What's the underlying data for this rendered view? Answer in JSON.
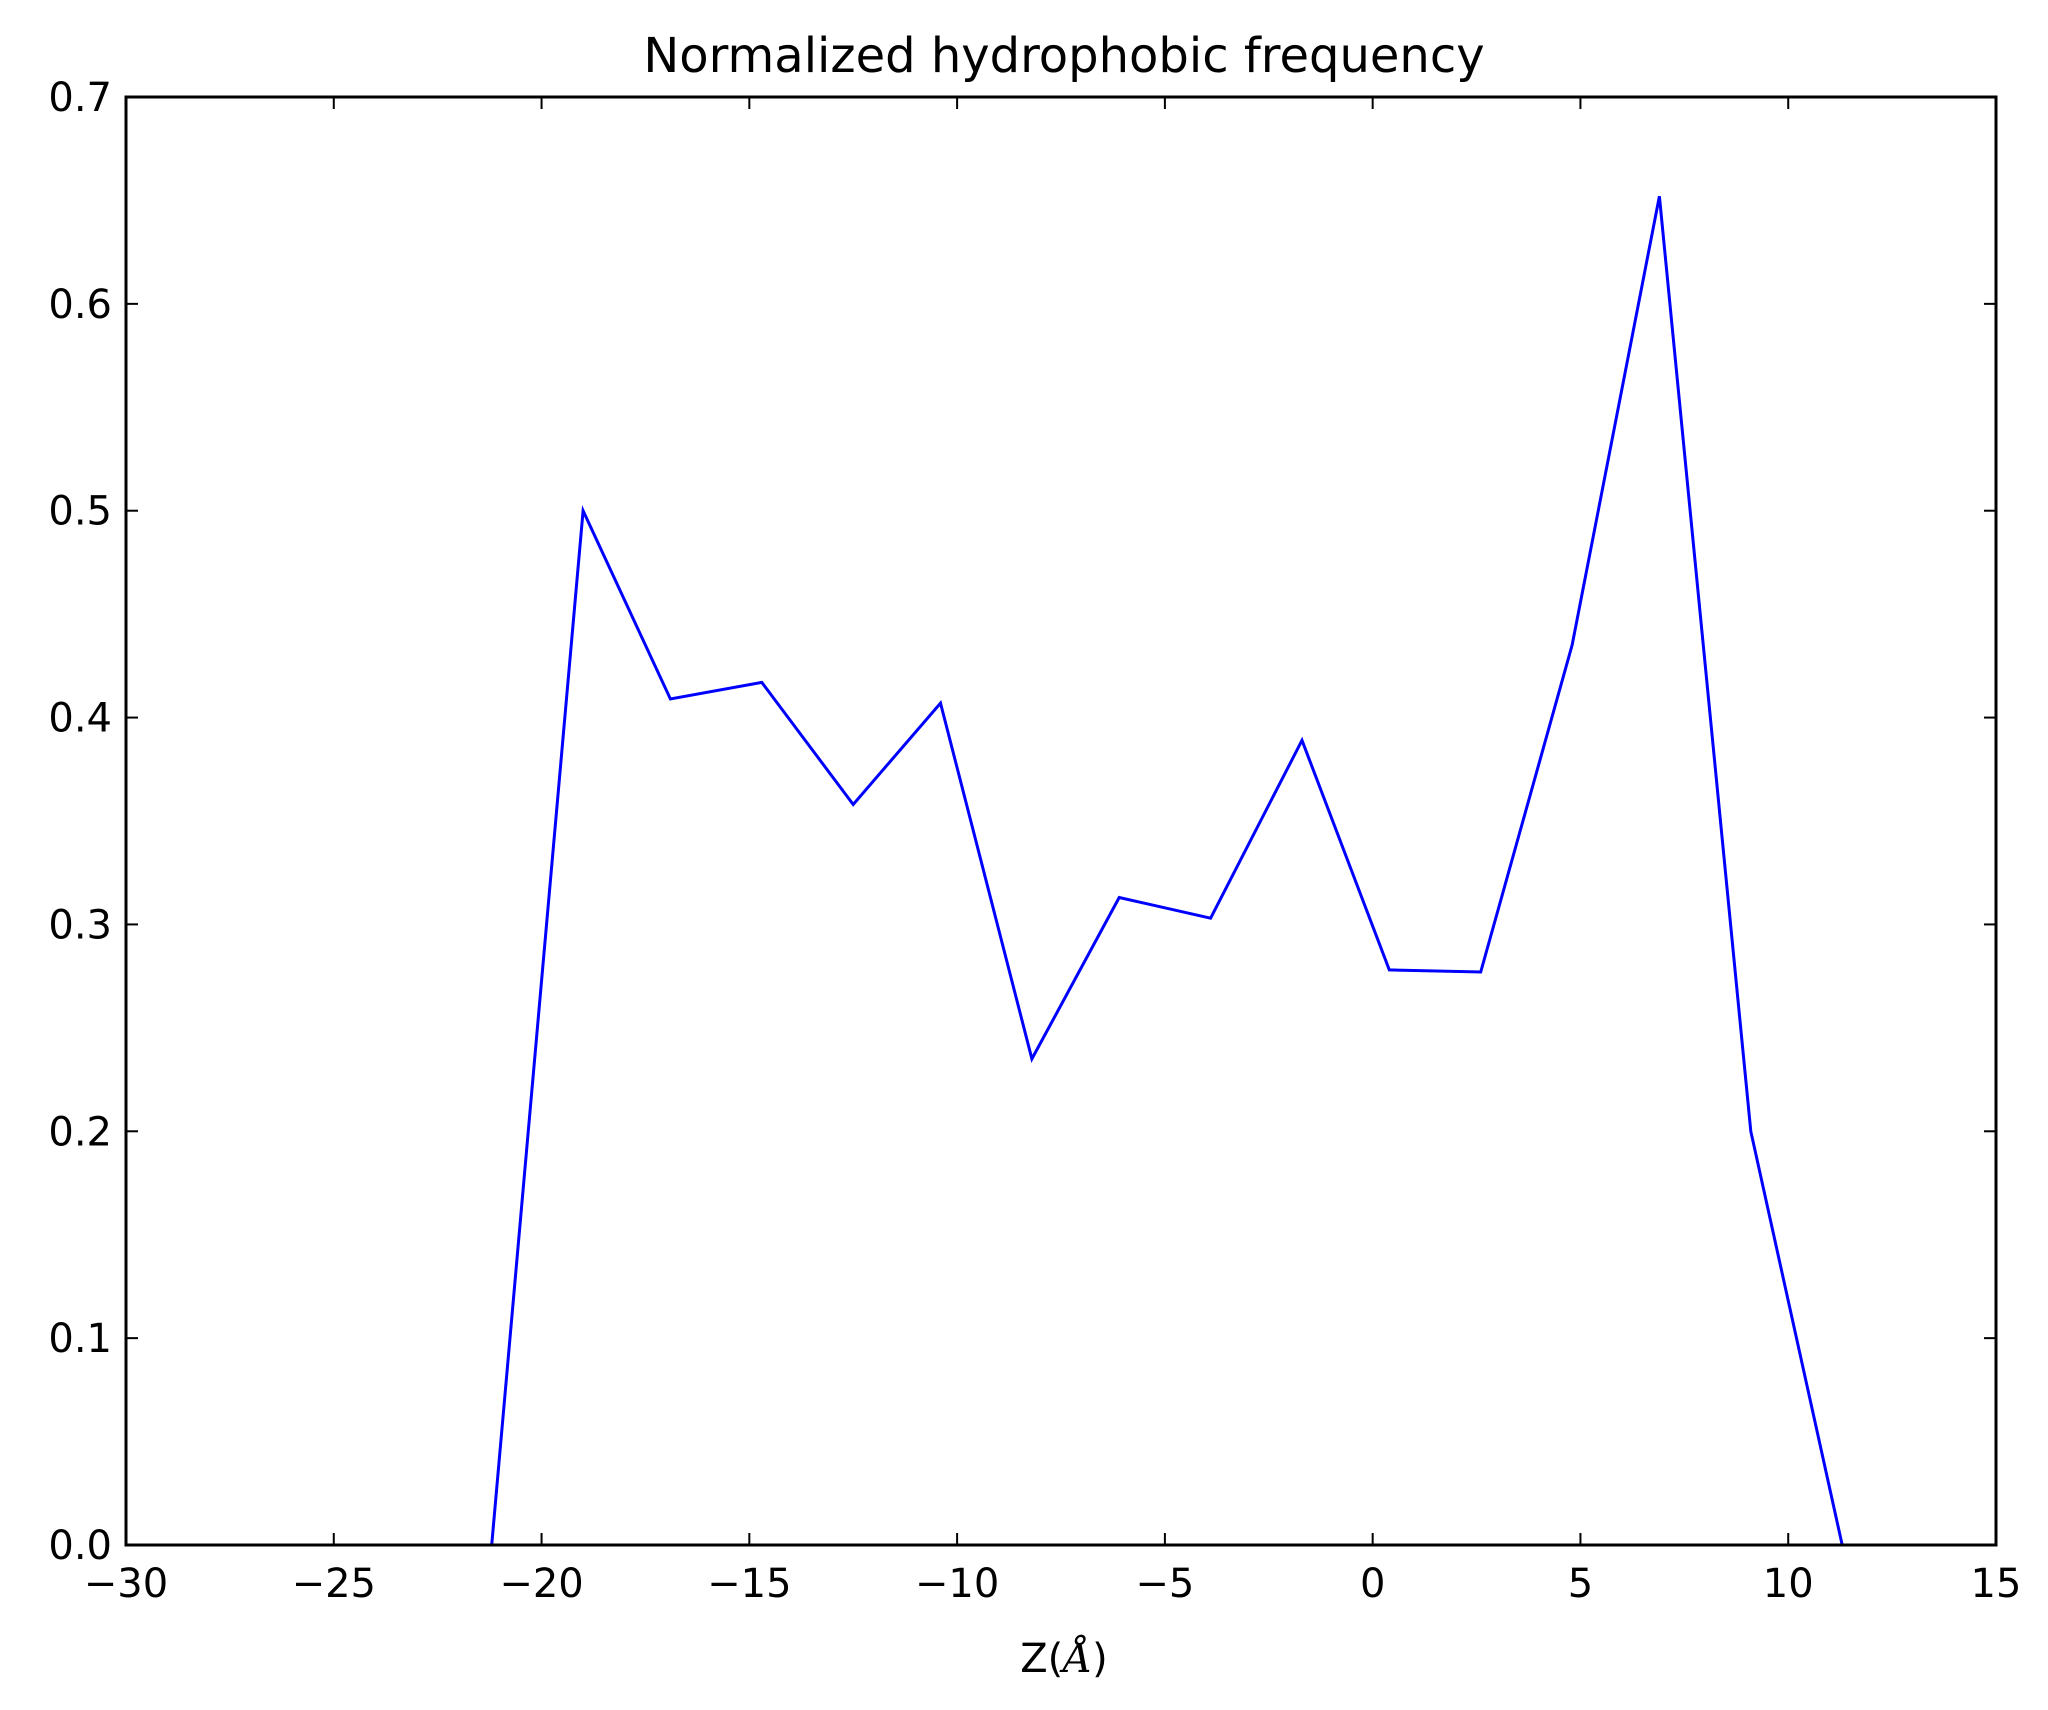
{
  "chart_data": {
    "type": "line",
    "title": "Normalized hydrophobic frequency",
    "xlabel": "Z(Å)",
    "xlabel_parts": {
      "prefix": "Z(",
      "symbol": "Å",
      "suffix": ")"
    },
    "ylabel": "",
    "xlim": [
      -30,
      15
    ],
    "ylim": [
      0.0,
      0.7
    ],
    "x_ticks": [
      -30,
      -25,
      -20,
      -15,
      -10,
      -5,
      0,
      5,
      10,
      15
    ],
    "x_tick_labels": [
      "−30",
      "−25",
      "−20",
      "−15",
      "−10",
      "−5",
      "0",
      "5",
      "10",
      "15"
    ],
    "y_ticks": [
      0.0,
      0.1,
      0.2,
      0.3,
      0.4,
      0.5,
      0.6,
      0.7
    ],
    "y_tick_labels": [
      "0.0",
      "0.1",
      "0.2",
      "0.3",
      "0.4",
      "0.5",
      "0.6",
      "0.7"
    ],
    "grid": false,
    "legend": "none",
    "series": [
      {
        "color": "#0000ff",
        "x": [
          -27.7,
          -25.5,
          -23.4,
          -21.2,
          -19.0,
          -16.9,
          -14.7,
          -12.5,
          -10.4,
          -8.2,
          -6.1,
          -3.9,
          -1.7,
          0.4,
          2.6,
          4.8,
          6.9,
          9.1,
          11.3
        ],
        "y": [
          0.0,
          0.0,
          0.0,
          0.0,
          0.5,
          0.409,
          0.417,
          0.358,
          0.407,
          0.235,
          0.313,
          0.303,
          0.389,
          0.278,
          0.277,
          0.435,
          0.652,
          0.2,
          0.0
        ]
      }
    ]
  }
}
